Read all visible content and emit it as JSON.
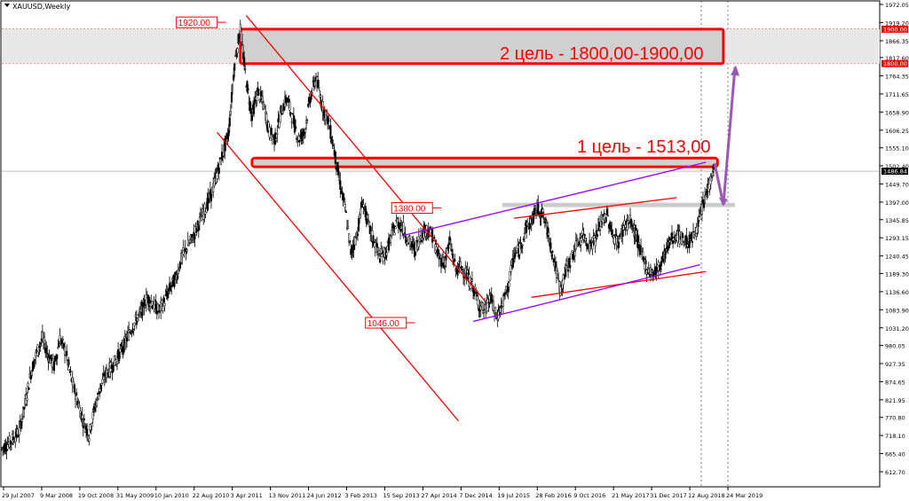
{
  "chart_data": {
    "type": "candlestick",
    "symbol": "XAUUSD,Weekly",
    "y_ticks": [
      "1972.05",
      "1919.20",
      "1866.35",
      "1817.60",
      "1764.35",
      "1711.65",
      "1658.90",
      "1606.25",
      "1555.10",
      "1502.40",
      "1449.70",
      "1397.00",
      "1345.85",
      "1293.15",
      "1240.45",
      "1189.30",
      "1136.60",
      "1083.90",
      "1031.20",
      "980.05",
      "927.35",
      "874.65",
      "821.95",
      "770.80",
      "718.10",
      "665.40",
      "612.70"
    ],
    "y_range": [
      612.7,
      1972.05
    ],
    "x_ticks": [
      "29 Jul 2007",
      "9 Mar 2008",
      "19 Oct 2008",
      "31 May 2009",
      "10 Jan 2010",
      "22 Aug 2010",
      "3 Apr 2011",
      "13 Nov 2011",
      "24 Jun 2012",
      "3 Feb 2013",
      "15 Sep 2013",
      "27 Apr 2014",
      "7 Dec 2014",
      "19 Jul 2015",
      "28 Feb 2016",
      "9 Oct 2016",
      "21 May 2017",
      "31 Dec 2017",
      "12 Aug 2018",
      "24 Mar 2019"
    ],
    "current_price": "1486.84",
    "level_tags": [
      "1900.00",
      "1800.00"
    ],
    "price_labels": [
      "1920.00",
      "1380.00",
      "1046.00"
    ],
    "annotations": {
      "target_1": "1 цель - 1513,00",
      "target_2": "2 цель - 1800,00-1900,00"
    },
    "colors": {
      "candle": "#000000",
      "trend_red": "#ff0000",
      "channel_purple": "#9900ff",
      "arrow_purple": "#9b59b6",
      "zone_fill": "#d9d9d9",
      "tag_red": "#ff0000",
      "current_tag": "#000000"
    },
    "price_path": [
      [
        0,
        680
      ],
      [
        3,
        700
      ],
      [
        6,
        730
      ],
      [
        8,
        810
      ],
      [
        10,
        900
      ],
      [
        12,
        960
      ],
      [
        14,
        1000
      ],
      [
        16,
        950
      ],
      [
        18,
        920
      ],
      [
        20,
        1000
      ],
      [
        22,
        960
      ],
      [
        24,
        880
      ],
      [
        26,
        820
      ],
      [
        28,
        760
      ],
      [
        30,
        720
      ],
      [
        32,
        800
      ],
      [
        34,
        860
      ],
      [
        36,
        900
      ],
      [
        38,
        920
      ],
      [
        40,
        950
      ],
      [
        42,
        980
      ],
      [
        44,
        1020
      ],
      [
        46,
        1050
      ],
      [
        48,
        1080
      ],
      [
        50,
        1120
      ],
      [
        52,
        1100
      ],
      [
        54,
        1080
      ],
      [
        56,
        1110
      ],
      [
        58,
        1150
      ],
      [
        60,
        1180
      ],
      [
        62,
        1240
      ],
      [
        64,
        1270
      ],
      [
        66,
        1300
      ],
      [
        68,
        1340
      ],
      [
        70,
        1380
      ],
      [
        72,
        1420
      ],
      [
        74,
        1480
      ],
      [
        76,
        1540
      ],
      [
        78,
        1600
      ],
      [
        80,
        1800
      ],
      [
        82,
        1900
      ],
      [
        84,
        1750
      ],
      [
        86,
        1650
      ],
      [
        88,
        1720
      ],
      [
        90,
        1680
      ],
      [
        92,
        1600
      ],
      [
        94,
        1580
      ],
      [
        96,
        1660
      ],
      [
        98,
        1700
      ],
      [
        100,
        1640
      ],
      [
        102,
        1580
      ],
      [
        104,
        1600
      ],
      [
        106,
        1700
      ],
      [
        108,
        1760
      ],
      [
        110,
        1680
      ],
      [
        112,
        1640
      ],
      [
        114,
        1560
      ],
      [
        116,
        1460
      ],
      [
        118,
        1380
      ],
      [
        120,
        1250
      ],
      [
        122,
        1300
      ],
      [
        124,
        1400
      ],
      [
        126,
        1330
      ],
      [
        128,
        1280
      ],
      [
        130,
        1240
      ],
      [
        132,
        1250
      ],
      [
        134,
        1300
      ],
      [
        136,
        1340
      ],
      [
        138,
        1320
      ],
      [
        140,
        1280
      ],
      [
        142,
        1260
      ],
      [
        144,
        1300
      ],
      [
        146,
        1320
      ],
      [
        148,
        1300
      ],
      [
        150,
        1240
      ],
      [
        152,
        1220
      ],
      [
        154,
        1280
      ],
      [
        156,
        1200
      ],
      [
        158,
        1210
      ],
      [
        160,
        1180
      ],
      [
        162,
        1150
      ],
      [
        164,
        1100
      ],
      [
        166,
        1080
      ],
      [
        168,
        1120
      ],
      [
        170,
        1060
      ],
      [
        172,
        1100
      ],
      [
        174,
        1150
      ],
      [
        176,
        1240
      ],
      [
        178,
        1260
      ],
      [
        180,
        1320
      ],
      [
        182,
        1340
      ],
      [
        184,
        1380
      ],
      [
        186,
        1360
      ],
      [
        188,
        1300
      ],
      [
        190,
        1220
      ],
      [
        192,
        1140
      ],
      [
        194,
        1200
      ],
      [
        196,
        1240
      ],
      [
        198,
        1280
      ],
      [
        200,
        1300
      ],
      [
        202,
        1270
      ],
      [
        204,
        1290
      ],
      [
        206,
        1340
      ],
      [
        208,
        1360
      ],
      [
        210,
        1300
      ],
      [
        212,
        1280
      ],
      [
        214,
        1330
      ],
      [
        216,
        1340
      ],
      [
        218,
        1300
      ],
      [
        220,
        1240
      ],
      [
        222,
        1200
      ],
      [
        224,
        1190
      ],
      [
        226,
        1210
      ],
      [
        228,
        1250
      ],
      [
        230,
        1290
      ],
      [
        232,
        1300
      ],
      [
        234,
        1290
      ],
      [
        236,
        1280
      ],
      [
        238,
        1300
      ],
      [
        240,
        1350
      ],
      [
        242,
        1420
      ],
      [
        244,
        1470
      ],
      [
        245,
        1510
      ]
    ],
    "trendlines": [
      {
        "name": "red-channel-upper",
        "color": "#ff0000",
        "p1": [
          84,
          1940
        ],
        "p2": [
          166,
          1110
        ]
      },
      {
        "name": "red-channel-lower",
        "color": "#ff0000",
        "p1": [
          74,
          1600
        ],
        "p2": [
          157,
          760
        ]
      },
      {
        "name": "red-upper-rising",
        "color": "#ff0000",
        "p1": [
          176,
          1350
        ],
        "p2": [
          232,
          1410
        ]
      },
      {
        "name": "red-lower-rising",
        "color": "#ff0000",
        "p1": [
          182,
          1120
        ],
        "p2": [
          242,
          1195
        ]
      },
      {
        "name": "purple-channel-upper",
        "color": "#9900ff",
        "p1": [
          138,
          1300
        ],
        "p2": [
          242,
          1513
        ]
      },
      {
        "name": "purple-channel-lower",
        "color": "#9900ff",
        "p1": [
          162,
          1050
        ],
        "p2": [
          240,
          1215
        ]
      }
    ],
    "zones": [
      {
        "name": "target-2-zone",
        "from": 1800,
        "to": 1900,
        "x1": 82,
        "x2": 248
      },
      {
        "name": "target-1-zone",
        "from": 1505,
        "to": 1520,
        "x1": 86,
        "x2": 246
      },
      {
        "name": "support-1380-zone",
        "from": 1385,
        "to": 1395,
        "x1": 172,
        "x2": 252
      }
    ]
  }
}
